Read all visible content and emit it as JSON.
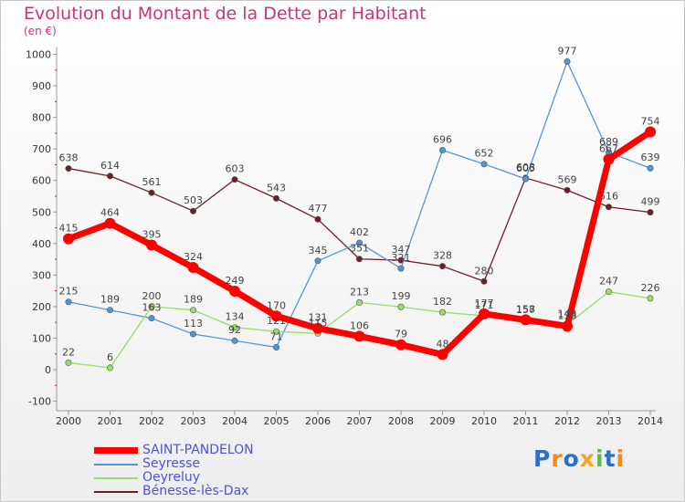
{
  "header": {
    "title": "Evolution du Montant de la Dette par Habitant",
    "unit": "(en €)"
  },
  "legend": [
    {
      "label": "SAINT-PANDELON",
      "color": "#ff0000",
      "width": 7
    },
    {
      "label": "Seyresse",
      "color": "#5596d2",
      "width": 1.3
    },
    {
      "label": "Oeyreluy",
      "color": "#99dd66",
      "width": 1.3
    },
    {
      "label": "Bénesse-lès-Dax",
      "color": "#6b1f24",
      "width": 1.3
    }
  ],
  "logo": {
    "text": "Proxiti"
  },
  "chart_data": {
    "type": "line",
    "title": "Evolution du Montant de la Dette par Habitant",
    "ylabel": "(en €)",
    "x": [
      "2000",
      "2001",
      "2002",
      "2003",
      "2004",
      "2005",
      "2006",
      "2007",
      "2008",
      "2009",
      "2010",
      "2011",
      "2012",
      "2013",
      "2014"
    ],
    "ylim": [
      -100,
      1000
    ],
    "yticks": [
      -100,
      0,
      100,
      200,
      300,
      400,
      500,
      600,
      700,
      800,
      900,
      1000
    ],
    "grid": false,
    "legend_position": "bottom-left",
    "series": [
      {
        "name": "SAINT-PANDELON",
        "color": "#ff0000",
        "values": [
          415,
          464,
          395,
          324,
          249,
          170,
          131,
          106,
          79,
          48,
          177,
          158,
          138,
          667,
          754
        ]
      },
      {
        "name": "Seyresse",
        "color": "#5596d2",
        "values": [
          215,
          189,
          163,
          113,
          92,
          71,
          345,
          402,
          321,
          696,
          652,
          605,
          977,
          689,
          639
        ]
      },
      {
        "name": "Oeyreluy",
        "color": "#99dd66",
        "values": [
          22,
          6,
          200,
          189,
          134,
          121,
          115,
          213,
          199,
          182,
          171,
          157,
          143,
          247,
          226
        ]
      },
      {
        "name": "Bénesse-lès-Dax",
        "color": "#6b1f24",
        "values": [
          638,
          614,
          561,
          503,
          603,
          543,
          477,
          351,
          347,
          328,
          280,
          608,
          569,
          516,
          499
        ]
      }
    ]
  }
}
